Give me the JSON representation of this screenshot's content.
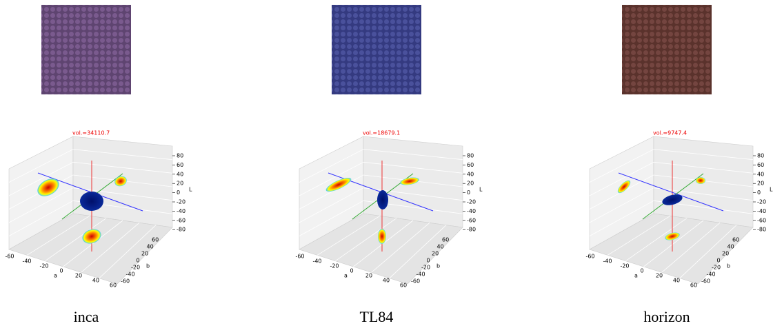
{
  "panels": [
    {
      "caption": "inca",
      "volume": "vol.=34110.7"
    },
    {
      "caption": "TL84",
      "volume": "vol.=18679.1"
    },
    {
      "caption": "horizon",
      "volume": "vol.=9747.4"
    }
  ],
  "axes": {
    "l_label": "L",
    "l_ticks": [
      80,
      60,
      40,
      20,
      0,
      -20,
      -40,
      -60,
      -80
    ],
    "a_label": "a",
    "a_ticks": [
      -60,
      -40,
      -20,
      0,
      20,
      40,
      60
    ],
    "b_label": "b",
    "b_ticks": [
      60,
      40,
      20,
      0,
      -20,
      -40,
      -60
    ]
  }
}
